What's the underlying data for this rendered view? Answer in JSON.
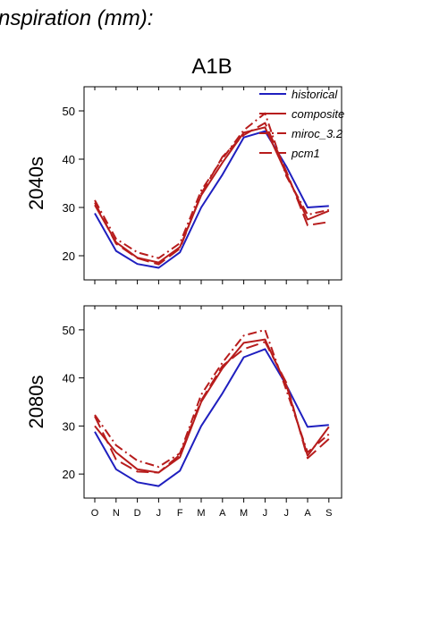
{
  "header": {
    "title": "nspiration (mm):",
    "scenario": "A1B"
  },
  "colors": {
    "historical": "#1f1fbf",
    "projection": "#b71c1c"
  },
  "chart_data": [
    {
      "type": "line",
      "panel_label": "2040s",
      "categories": [
        "O",
        "N",
        "D",
        "J",
        "F",
        "M",
        "A",
        "M",
        "J",
        "J",
        "A",
        "S"
      ],
      "ylim": [
        15,
        55
      ],
      "yticks": [
        20,
        30,
        40,
        50
      ],
      "legend_position": "top-right",
      "series": [
        {
          "name": "historical",
          "style": "solid",
          "color": "#1f1fbf",
          "values": [
            28.8,
            21.0,
            18.3,
            17.5,
            20.7,
            30.0,
            36.8,
            44.5,
            45.8,
            38.5,
            30.0,
            30.3
          ]
        },
        {
          "name": "composite",
          "style": "solid",
          "color": "#b71c1c",
          "values": [
            30.5,
            22.8,
            19.6,
            18.6,
            21.8,
            32.5,
            39.3,
            45.5,
            46.6,
            37.0,
            27.5,
            29.3
          ]
        },
        {
          "name": "miroc_3.2",
          "style": "dashdot",
          "color": "#b71c1c",
          "values": [
            31.5,
            23.5,
            20.7,
            19.5,
            22.6,
            33.5,
            40.1,
            46.0,
            49.5,
            36.5,
            28.5,
            29.5
          ]
        },
        {
          "name": "pcm1",
          "style": "longdash",
          "color": "#b71c1c",
          "values": [
            31.0,
            22.5,
            19.5,
            18.2,
            21.5,
            32.8,
            40.5,
            45.0,
            47.5,
            37.5,
            26.3,
            27.0
          ]
        }
      ]
    },
    {
      "type": "line",
      "panel_label": "2080s",
      "categories": [
        "O",
        "N",
        "D",
        "J",
        "F",
        "M",
        "A",
        "M",
        "J",
        "J",
        "A",
        "S"
      ],
      "ylim": [
        15,
        55
      ],
      "yticks": [
        20,
        30,
        40,
        50
      ],
      "series": [
        {
          "name": "historical",
          "style": "solid",
          "color": "#1f1fbf",
          "values": [
            28.8,
            21.0,
            18.3,
            17.5,
            20.7,
            30.0,
            36.8,
            44.3,
            46.0,
            38.5,
            29.8,
            30.2
          ]
        },
        {
          "name": "composite",
          "style": "solid",
          "color": "#b71c1c",
          "values": [
            30.0,
            24.5,
            21.0,
            20.3,
            23.5,
            35.0,
            42.0,
            47.3,
            48.0,
            38.5,
            23.8,
            29.8
          ]
        },
        {
          "name": "miroc_3.2",
          "style": "dashdot",
          "color": "#b71c1c",
          "values": [
            32.3,
            26.0,
            22.8,
            21.5,
            24.3,
            36.5,
            43.2,
            48.8,
            50.0,
            37.5,
            24.5,
            28.3
          ]
        },
        {
          "name": "pcm1",
          "style": "longdash",
          "color": "#b71c1c",
          "values": [
            32.0,
            23.0,
            20.5,
            20.3,
            24.0,
            35.3,
            42.5,
            46.0,
            47.5,
            39.0,
            23.3,
            27.3
          ]
        }
      ]
    }
  ]
}
